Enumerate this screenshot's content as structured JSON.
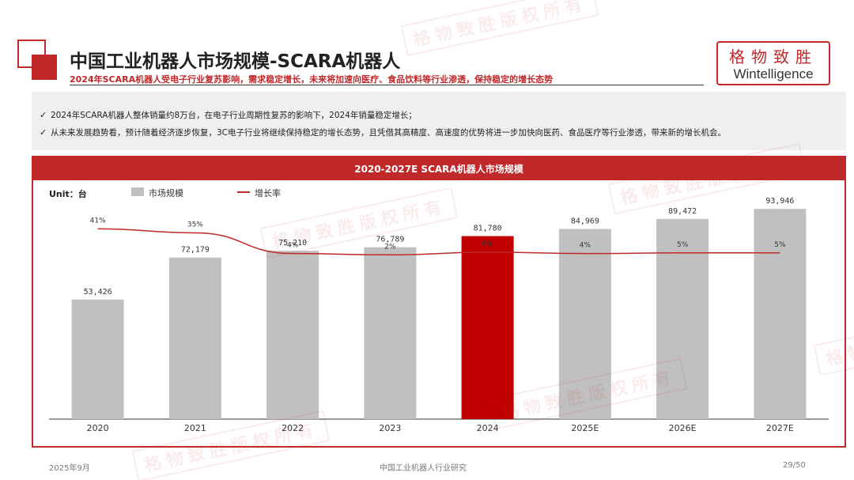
{
  "header": {
    "title": "中国工业机器人市场规模-SCARA机器人",
    "subtitle": "2024年SCARA机器人受电子行业复苏影响，需求稳定增长，未来将加速向医疗、食品饮料等行业渗透，保持稳定的增长态势"
  },
  "logo": {
    "cn": "格物致胜",
    "en": "Wintelligence"
  },
  "watermark": "格物致胜版权所有",
  "bullets": [
    "2024年SCARA机器人整体销量约8万台，在电子行业周期性复苏的影响下，2024年销量稳定增长；",
    "从未来发展趋势看，预计随着经济逐步恢复，3C电子行业将继续保持稳定的增长态势，且凭借其高精度、高速度的优势将进一步加快向医药、食品医疗等行业渗透，带来新的增长机会。"
  ],
  "colors": {
    "accent": "#c0282a",
    "bar": "#c0c0c0",
    "highlight_bar": "#c00000"
  },
  "chart_data": {
    "type": "bar",
    "title": "2020-2027E SCARA机器人市场规模",
    "unit_label": "Unit：台",
    "categories": [
      "2020",
      "2021",
      "2022",
      "2023",
      "2024",
      "2025E",
      "2026E",
      "2027E"
    ],
    "series": [
      {
        "name": "市场规模",
        "type": "bar",
        "values": [
          53426,
          72179,
          75210,
          76789,
          81780,
          84969,
          89472,
          93946
        ],
        "labels": [
          "53,426",
          "72,179",
          "75,210",
          "76,789",
          "81,780",
          "84,969",
          "89,472",
          "93,946"
        ],
        "highlight_index": 4
      },
      {
        "name": "增长率",
        "type": "line",
        "values": [
          41,
          35,
          4,
          2,
          6,
          4,
          5,
          5
        ],
        "labels": [
          "41%",
          "35%",
          "4%",
          "2%",
          "6%",
          "4%",
          "5%",
          "5%"
        ]
      }
    ],
    "ylim": [
      0,
      100000
    ],
    "grid": false,
    "legend": "top-left"
  },
  "footer": {
    "date": "2025年9月",
    "center": "中国工业机器人行业研究",
    "page": "29/50"
  }
}
